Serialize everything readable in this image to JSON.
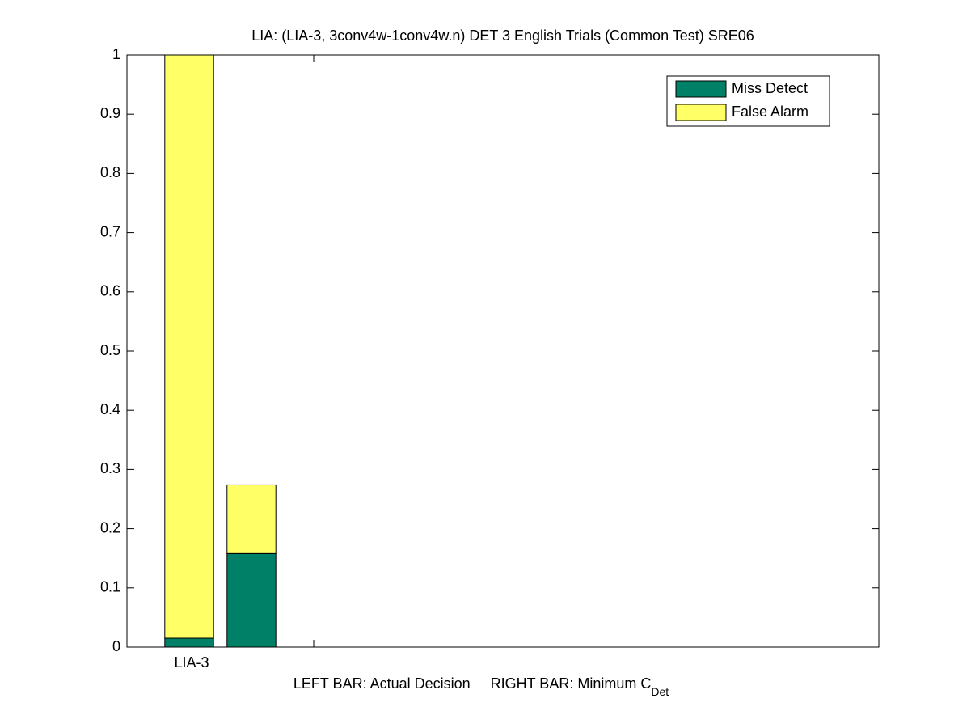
{
  "chart_data": {
    "type": "stacked_bar",
    "title": "LIA: (LIA-3, 3conv4w-1conv4w.n) DET 3 English Trials (Common Test) SRE06",
    "xlabel": "LEFT BAR: Actual Decision     RIGHT BAR: Minimum C",
    "xlabel_subscript": "Det",
    "x": [
      0.98,
      1.49
    ],
    "xlim": [
      0.47,
      6.63
    ],
    "xticks": [
      1,
      2
    ],
    "xtick_labels": [
      "LIA-3",
      null
    ],
    "ylim": [
      0,
      1
    ],
    "yticks": [
      0,
      0.1,
      0.2,
      0.3,
      0.4,
      0.5,
      0.6,
      0.7,
      0.8,
      0.9,
      1
    ],
    "series": [
      {
        "name": "Miss Detect",
        "color": "#008066",
        "values": [
          0.015,
          0.158
        ]
      },
      {
        "name": "False Alarm",
        "color": "#ffff66",
        "values": [
          0.985,
          0.116
        ]
      }
    ],
    "legend": "northeast",
    "grid": false
  }
}
